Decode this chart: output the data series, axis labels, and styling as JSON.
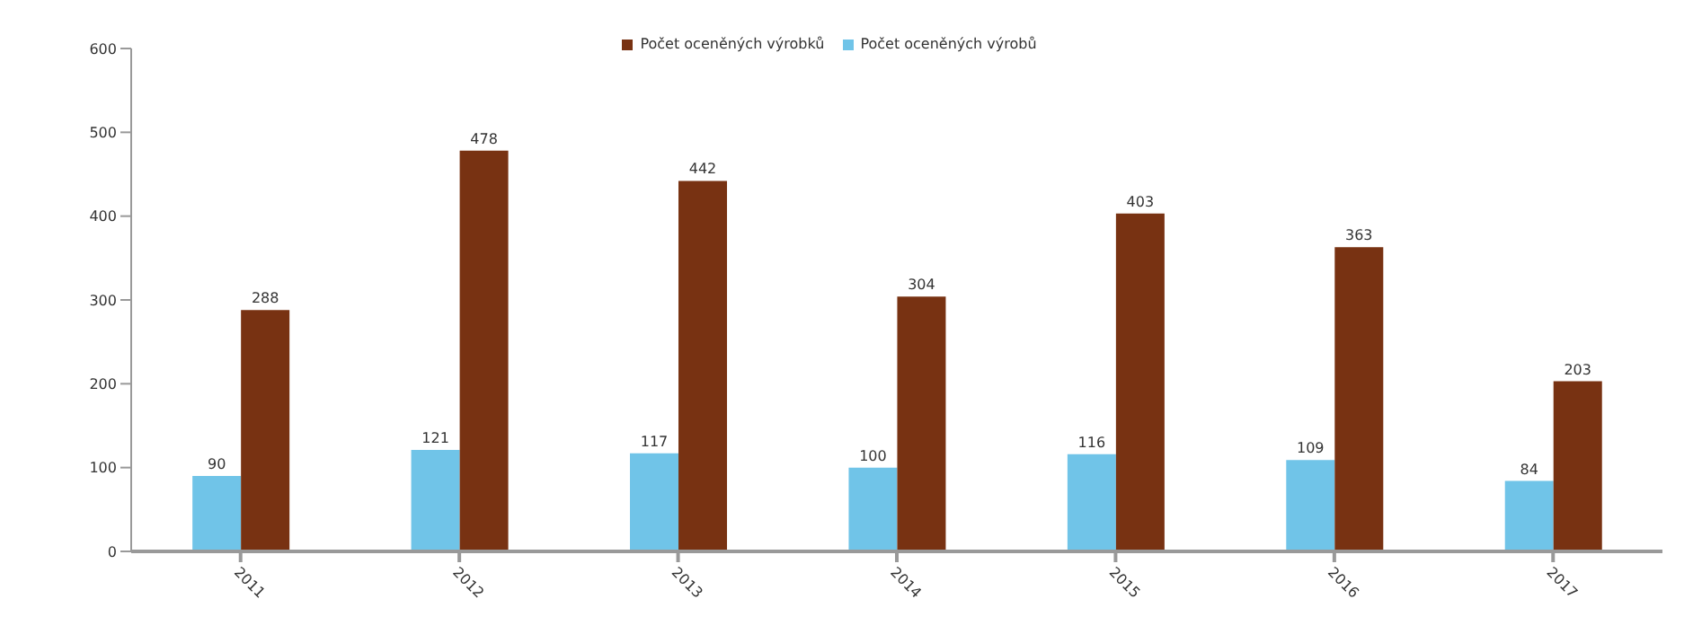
{
  "chart_data": {
    "type": "bar",
    "categories": [
      "2011",
      "2012",
      "2013",
      "2014",
      "2015",
      "2016",
      "2017"
    ],
    "series": [
      {
        "name": "Počet oceněných výrobů",
        "color": "#70c4e8",
        "values": [
          90,
          121,
          117,
          100,
          116,
          109,
          84
        ]
      },
      {
        "name": "Počet oceněných výrobků",
        "color": "#783212",
        "values": [
          288,
          478,
          442,
          304,
          403,
          363,
          203
        ]
      }
    ],
    "ylim": [
      0,
      600
    ],
    "yticks": [
      0,
      100,
      200,
      300,
      400,
      500,
      600
    ],
    "grid": false,
    "legend": "top",
    "data_labels": true
  }
}
